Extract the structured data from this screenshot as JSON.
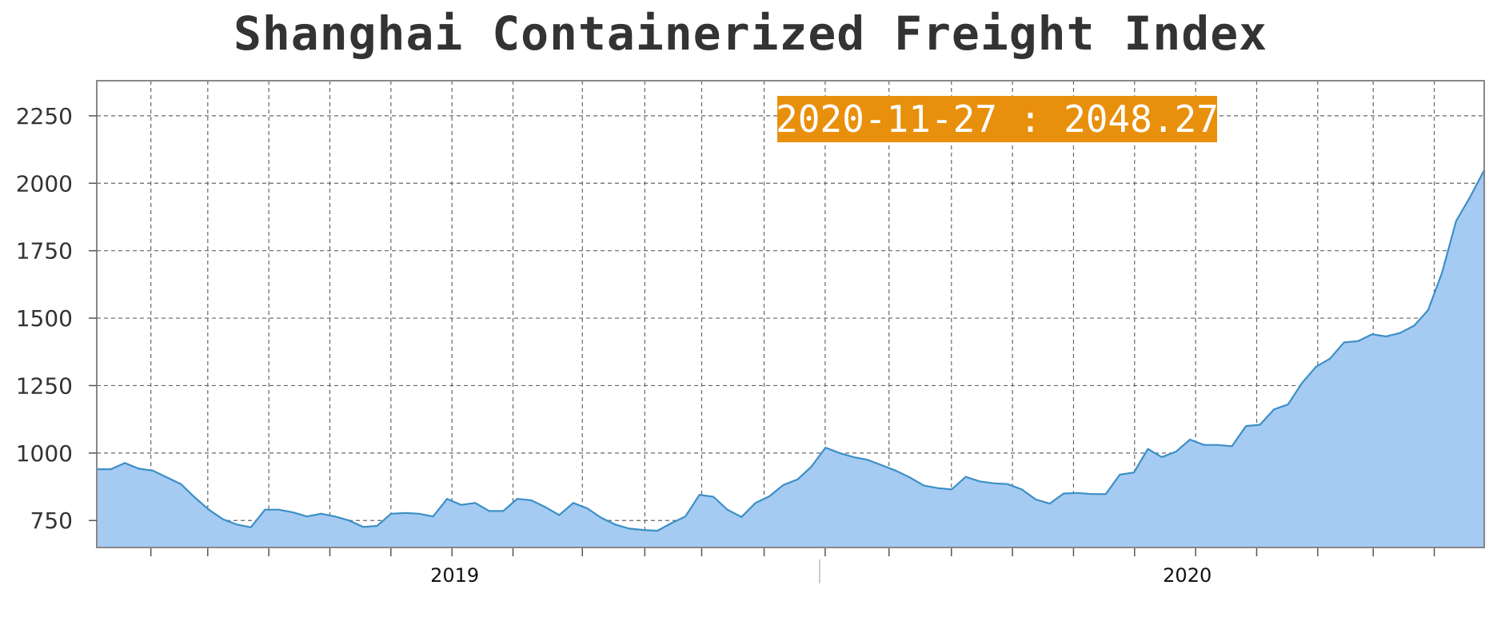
{
  "chart_data": {
    "type": "area",
    "title": "Shanghai Containerized Freight Index",
    "xlabel": "",
    "ylabel": "",
    "ylim": [
      650,
      2380
    ],
    "yticks": [
      750,
      1000,
      1250,
      1500,
      1750,
      2000,
      2250
    ],
    "x_year_labels": [
      "2019",
      "2020"
    ],
    "grid": true,
    "annotation": "2020-11-27 : 2048.27",
    "colors": {
      "fill": "#a5cbf3",
      "line": "#3c8fc6",
      "badge": "#e8900c",
      "grid": "#666666"
    },
    "series": [
      {
        "values": [
          940,
          940,
          963,
          942,
          935,
          910,
          885,
          835,
          790,
          755,
          735,
          725,
          790,
          790,
          780,
          765,
          775,
          765,
          750,
          726,
          730,
          775,
          778,
          775,
          765,
          830,
          808,
          815,
          785,
          785,
          830,
          825,
          800,
          770,
          815,
          795,
          760,
          735,
          720,
          715,
          712,
          740,
          765,
          845,
          838,
          790,
          763,
          815,
          840,
          882,
          902,
          950,
          1020,
          1000,
          985,
          975,
          955,
          935,
          910,
          880,
          870,
          865,
          912,
          895,
          888,
          885,
          865,
          828,
          813,
          850,
          852,
          848,
          848,
          920,
          928,
          1015,
          985,
          1005,
          1050,
          1030,
          1030,
          1025,
          1100,
          1105,
          1162,
          1180,
          1260,
          1320,
          1350,
          1410,
          1415,
          1440,
          1432,
          1445,
          1472,
          1530,
          1670,
          1860,
          1950,
          2048.27
        ]
      }
    ]
  }
}
